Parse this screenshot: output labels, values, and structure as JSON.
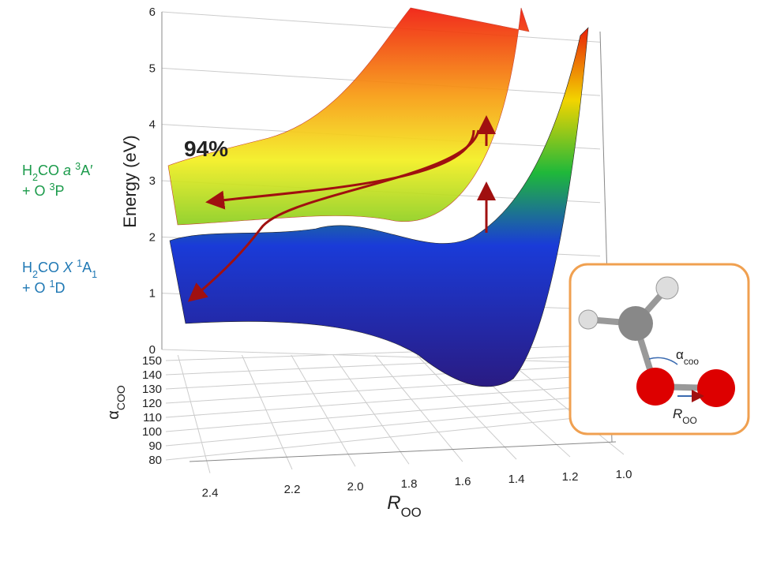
{
  "chart_data": {
    "type": "surface3d",
    "zlabel": "Energy (eV)",
    "zlim": [
      0,
      6
    ],
    "zticks": [
      0,
      1,
      2,
      3,
      4,
      5,
      6
    ],
    "ylabel": [
      {
        "text": "α"
      },
      {
        "text": "COO",
        "sub": true
      }
    ],
    "ylim": [
      80,
      150
    ],
    "yticks": [
      80,
      90,
      100,
      110,
      120,
      130,
      140,
      150
    ],
    "xlabel": [
      {
        "text": "R",
        "italic": true
      },
      {
        "text": "OO",
        "sub": true
      }
    ],
    "xlim": [
      1.0,
      2.4
    ],
    "xticks": [
      {
        "value": 1.0,
        "label": "1.0"
      },
      {
        "value": 1.2,
        "label": "1.2"
      },
      {
        "value": 1.4,
        "label": "1.4"
      },
      {
        "value": 1.6,
        "label": "1.6"
      },
      {
        "value": 1.8,
        "label": "1.8"
      },
      {
        "value": 2.0,
        "label": "2.0"
      },
      {
        "value": 2.2,
        "label": "2.2"
      },
      {
        "value": 2.4,
        "label": "2.4"
      }
    ],
    "grid": true,
    "annotation": "94%",
    "states": [
      {
        "color": "#1a9a4a",
        "lines": [
          [
            {
              "text": "H"
            },
            {
              "text": "2",
              "sub": true
            },
            {
              "text": "CO "
            },
            {
              "text": "a",
              "italic": true
            },
            {
              "text": " "
            },
            {
              "text": "3",
              "sup": true
            },
            {
              "text": "A′"
            }
          ],
          [
            {
              "text": " + O "
            },
            {
              "text": "3",
              "sup": true
            },
            {
              "text": "P"
            }
          ]
        ]
      },
      {
        "color": "#1f78b4",
        "lines": [
          [
            {
              "text": "H"
            },
            {
              "text": "2",
              "sub": true
            },
            {
              "text": "CO "
            },
            {
              "text": "X",
              "italic": true
            },
            {
              "text": " "
            },
            {
              "text": "1",
              "sup": true
            },
            {
              "text": "A"
            },
            {
              "text": "1",
              "sub": true
            }
          ],
          [
            {
              "text": " + O "
            },
            {
              "text": "1",
              "sup": true
            },
            {
              "text": "D"
            }
          ]
        ]
      }
    ],
    "inset": {
      "angle": [
        {
          "text": "α"
        },
        {
          "text": "coo",
          "sub": true
        }
      ],
      "distance": [
        {
          "text": "R",
          "italic": true
        },
        {
          "text": "OO",
          "sub": true
        }
      ]
    }
  }
}
